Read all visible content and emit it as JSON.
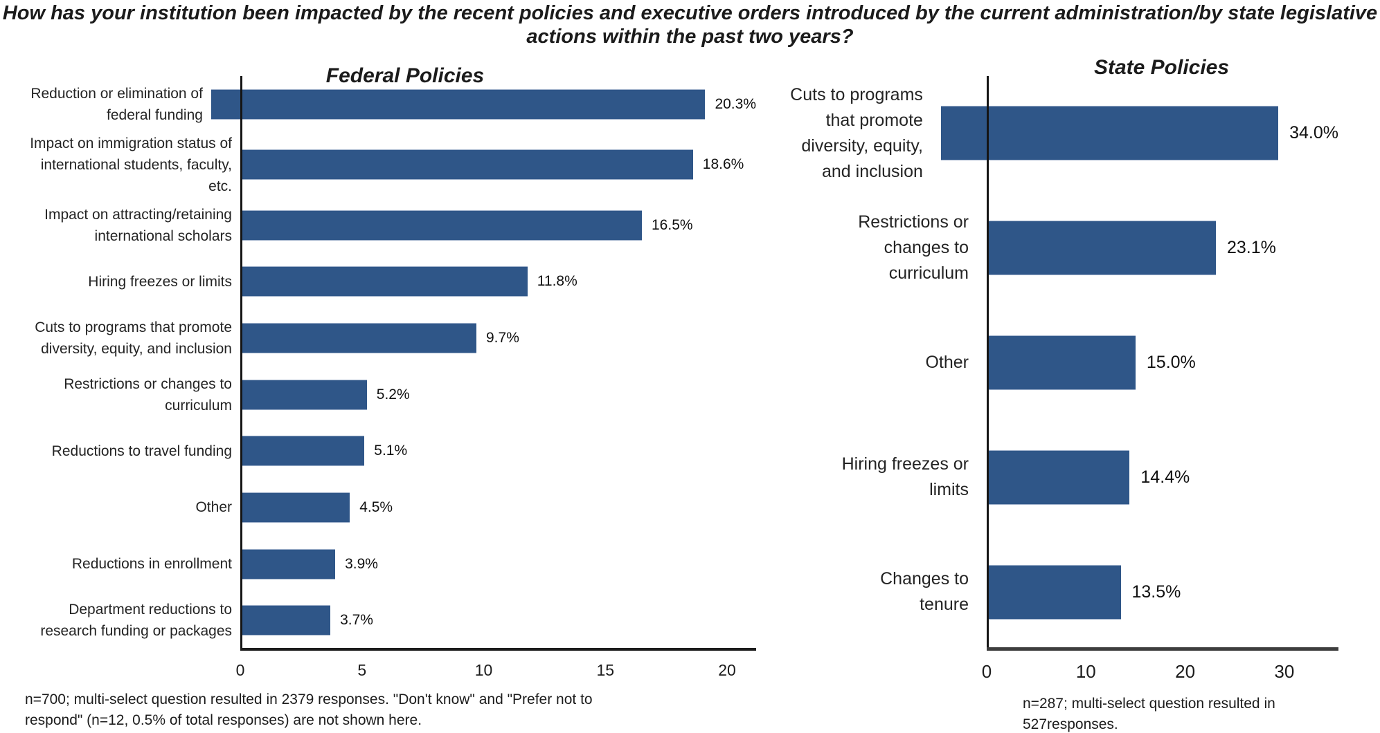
{
  "title": "How has your institution been impacted by the recent policies and executive orders introduced by the current administration/by state legislative\nactions within the past two years?",
  "colors": {
    "bar": "#2F5688",
    "axis": "#1c1c1c",
    "text": "#1f1f1f"
  },
  "chart_data": [
    {
      "type": "bar",
      "orientation": "horizontal",
      "title": "Federal Policies",
      "categories": [
        "Reduction or elimination of\nfederal funding",
        "Impact on immigration status of\ninternational students, faculty,\netc.",
        "Impact on attracting/retaining\ninternational scholars",
        "Hiring freezes or limits",
        "Cuts to programs that promote\ndiversity, equity, and inclusion",
        "Restrictions or changes to\ncurriculum",
        "Reductions to travel funding",
        "Other",
        "Reductions in enrollment",
        "Department reductions to\nresearch funding or packages"
      ],
      "values": [
        20.3,
        18.6,
        16.5,
        11.8,
        9.7,
        5.2,
        5.1,
        4.5,
        3.9,
        3.7
      ],
      "value_labels": [
        "20.3%",
        "18.6%",
        "16.5%",
        "11.8%",
        "9.7%",
        "5.2%",
        "5.1%",
        "4.5%",
        "3.9%",
        "3.7%"
      ],
      "x_ticks": [
        0,
        5,
        10,
        15,
        20
      ],
      "xlim": [
        0,
        21.2
      ],
      "grid": false,
      "footnote": "n=700; multi-select question resulted in 2379 responses. \"Don't know\" and \"Prefer not to\nrespond\" (n=12, 0.5% of total responses) are not shown here."
    },
    {
      "type": "bar",
      "orientation": "horizontal",
      "title": "State Policies",
      "categories": [
        "Cuts to programs\nthat promote\ndiversity, equity,\nand inclusion",
        "Restrictions or\nchanges to\ncurriculum",
        "Other",
        "Hiring freezes or\nlimits",
        "Changes to\ntenure"
      ],
      "values": [
        34.0,
        23.1,
        15.0,
        14.4,
        13.5
      ],
      "value_labels": [
        "34.0%",
        "23.1%",
        "15.0%",
        "14.4%",
        "13.5%"
      ],
      "x_ticks": [
        0,
        10,
        20,
        30
      ],
      "xlim": [
        0,
        35.4
      ],
      "grid": false,
      "footnote": "n=287; multi-select question resulted in\n527responses."
    }
  ]
}
